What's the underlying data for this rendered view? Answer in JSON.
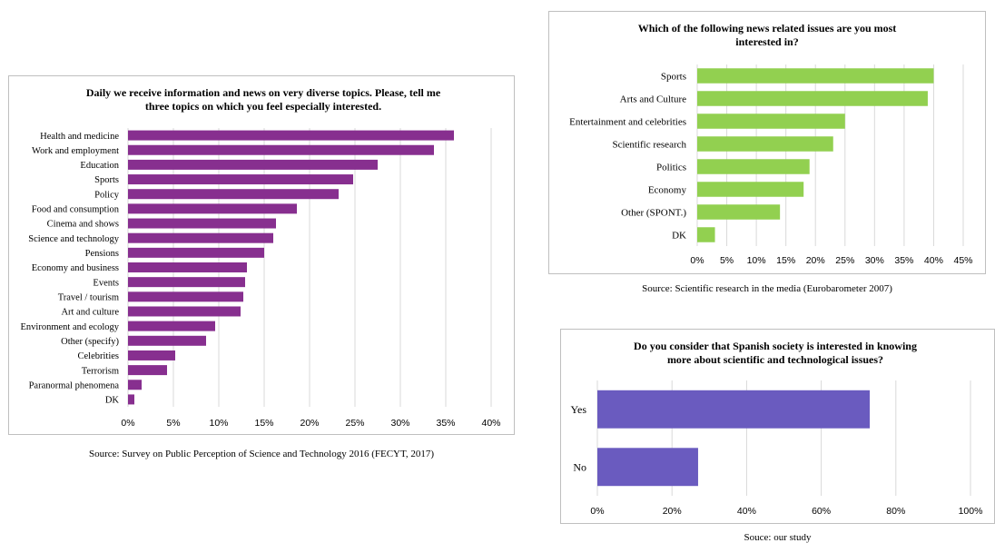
{
  "chart_data": [
    {
      "type": "bar",
      "orientation": "horizontal",
      "title": "Daily we receive information and news on very diverse topics. Please, tell me three topics on which you feel especially interested.",
      "title_lines": [
        "Daily we receive information and news on very diverse topics. Please, tell me",
        "three topics on which you feel especially interested."
      ],
      "categories": [
        "Health and medicine",
        "Work and employment",
        "Education",
        "Sports",
        "Policy",
        "Food and consumption",
        "Cinema and shows",
        "Science and technology",
        "Pensions",
        "Economy and business",
        "Events",
        "Travel / tourism",
        "Art and culture",
        "Environment and ecology",
        "Other (specify)",
        "Celebrities",
        "Terrorism",
        "Paranormal phenomena",
        "DK"
      ],
      "values": [
        35.9,
        33.7,
        27.5,
        24.8,
        23.2,
        18.6,
        16.3,
        16.0,
        15.0,
        13.1,
        12.9,
        12.7,
        12.4,
        9.6,
        8.6,
        5.2,
        4.3,
        1.5,
        0.7
      ],
      "xlim": [
        0,
        40
      ],
      "ticks": [
        "0%",
        "5%",
        "10%",
        "15%",
        "20%",
        "25%",
        "30%",
        "35%",
        "40%"
      ],
      "color": "#872f8f",
      "grid": true,
      "source": "Source: Survey on Public Perception of Science and Technology 2016 (FECYT, 2017)"
    },
    {
      "type": "bar",
      "orientation": "horizontal",
      "title": "Which of the following news related issues are you most interested in?",
      "title_lines": [
        "Which of the following news related issues are you most",
        "interested in?"
      ],
      "categories": [
        "Sports",
        "Arts and Culture",
        "Entertainment and celebrities",
        "Scientific research",
        "Politics",
        "Economy",
        "Other (SPONT.)",
        "DK"
      ],
      "values": [
        40,
        39,
        25,
        23,
        19,
        18,
        14,
        3
      ],
      "xlim": [
        0,
        45
      ],
      "ticks": [
        "0%",
        "5%",
        "10%",
        "15%",
        "20%",
        "25%",
        "30%",
        "35%",
        "40%",
        "45%"
      ],
      "color": "#92d050",
      "grid": true,
      "source": "Source: Scientific research in the media (Eurobarometer 2007)"
    },
    {
      "type": "bar",
      "orientation": "horizontal",
      "title": "Do you consider that Spanish society is interested in knowing more about scientific and technological issues?",
      "title_lines": [
        "Do you consider that Spanish society is interested in knowing",
        "more about scientific and technological issues?"
      ],
      "categories": [
        "Yes",
        "No"
      ],
      "values": [
        73,
        27
      ],
      "xlim": [
        0,
        100
      ],
      "ticks": [
        "0%",
        "20%",
        "40%",
        "60%",
        "80%",
        "100%"
      ],
      "color": "#6a5bbf",
      "grid": true,
      "source": "Souce: our study"
    }
  ]
}
